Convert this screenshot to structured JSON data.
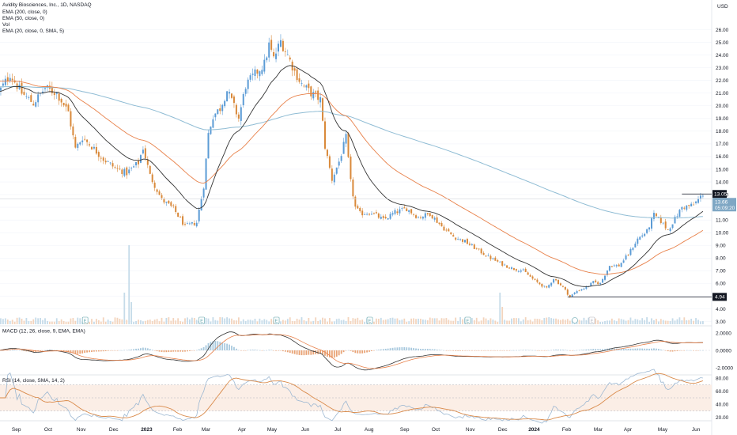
{
  "header": {
    "symbol_line": "Avidity Biosciences, Inc., 1D, NASDAQ",
    "indicators": [
      "EMA (200, close, 0)",
      "EMA (50, close, 0)",
      "Vol",
      "EMA (20, close, 0, SMA, 5)"
    ],
    "currency": "USD"
  },
  "colors": {
    "up": "#5b9bd5",
    "down": "#d9893a",
    "ema20": "#333333",
    "ema50": "#e8814a",
    "ema200": "#8fbcd4",
    "macd": "#333333",
    "signal": "#e8814a",
    "rsi": "#9db8d2",
    "rsi_ma": "#d98a4a",
    "rsi_band": "#fbeee6"
  },
  "chart_data": [
    {
      "type": "candlestick",
      "x_ticks": [
        "Sep",
        "Oct",
        "Nov",
        "Dec",
        "2023",
        "Feb",
        "Mar",
        "Apr",
        "May",
        "Jun",
        "Jul",
        "Aug",
        "Sep",
        "Oct",
        "Nov",
        "Dec",
        "2024",
        "Feb",
        "Mar",
        "Apr",
        "May",
        "Jun"
      ],
      "y_ticks": [
        "26.00",
        "25.00",
        "24.00",
        "23.00",
        "22.00",
        "21.00",
        "20.00",
        "19.00",
        "18.00",
        "17.00",
        "16.00",
        "15.00",
        "14.00",
        "13.00",
        "12.00",
        "11.00",
        "10.00",
        "9.00",
        "8.00",
        "7.00",
        "6.00",
        "5.00",
        "4.00",
        "3.00"
      ],
      "ylim": [
        3,
        26.5
      ],
      "price_path": [
        [
          0,
          21.0
        ],
        [
          5,
          22.5
        ],
        [
          10,
          21.0
        ],
        [
          15,
          20.2
        ],
        [
          20,
          21.4
        ],
        [
          25,
          21.0
        ],
        [
          30,
          19.5
        ],
        [
          33,
          16.6
        ],
        [
          36,
          17.5
        ],
        [
          40,
          16.8
        ],
        [
          45,
          15.8
        ],
        [
          50,
          15.1
        ],
        [
          55,
          14.7
        ],
        [
          60,
          15.5
        ],
        [
          62,
          16.7
        ],
        [
          65,
          14.5
        ],
        [
          70,
          12.6
        ],
        [
          75,
          11.9
        ],
        [
          80,
          10.5
        ],
        [
          85,
          10.8
        ],
        [
          88,
          13.7
        ],
        [
          90,
          17.8
        ],
        [
          92,
          19.2
        ],
        [
          95,
          19.8
        ],
        [
          98,
          21.2
        ],
        [
          100,
          20.4
        ],
        [
          103,
          19.0
        ],
        [
          106,
          21.6
        ],
        [
          110,
          22.5
        ],
        [
          114,
          23.3
        ],
        [
          116,
          24.8
        ],
        [
          118,
          23.7
        ],
        [
          121,
          25.1
        ],
        [
          124,
          24.0
        ],
        [
          127,
          22.7
        ],
        [
          130,
          21.7
        ],
        [
          134,
          21.0
        ],
        [
          138,
          20.5
        ],
        [
          140,
          16.8
        ],
        [
          143,
          14.2
        ],
        [
          146,
          15.6
        ],
        [
          149,
          17.5
        ],
        [
          151,
          14.0
        ],
        [
          153,
          12.0
        ],
        [
          155,
          11.5
        ],
        [
          160,
          11.6
        ],
        [
          165,
          11.0
        ],
        [
          170,
          11.6
        ],
        [
          175,
          11.9
        ],
        [
          180,
          11.2
        ],
        [
          185,
          11.5
        ],
        [
          190,
          10.5
        ],
        [
          195,
          9.7
        ],
        [
          200,
          9.3
        ],
        [
          205,
          8.7
        ],
        [
          210,
          8.1
        ],
        [
          215,
          7.6
        ],
        [
          220,
          7.2
        ],
        [
          225,
          7.0
        ],
        [
          230,
          6.2
        ],
        [
          235,
          5.6
        ],
        [
          238,
          6.4
        ],
        [
          242,
          5.7
        ],
        [
          245,
          4.95
        ],
        [
          248,
          5.4
        ],
        [
          252,
          5.7
        ],
        [
          255,
          6.1
        ],
        [
          258,
          6.0
        ],
        [
          262,
          7.4
        ],
        [
          266,
          7.4
        ],
        [
          270,
          8.3
        ],
        [
          274,
          9.5
        ],
        [
          278,
          10.1
        ],
        [
          281,
          11.4
        ],
        [
          284,
          10.9
        ],
        [
          287,
          10.2
        ],
        [
          290,
          11.1
        ],
        [
          293,
          12.0
        ],
        [
          296,
          12.1
        ],
        [
          298,
          12.2
        ],
        [
          300,
          12.6
        ],
        [
          302,
          13.05
        ]
      ],
      "last_price": "13.05",
      "last_price_detail": [
        "13.66",
        "05:09:20"
      ],
      "low_marker": "4.94",
      "earnings_markers": [
        "E",
        "E",
        "E",
        "E",
        "E",
        "E"
      ]
    },
    {
      "type": "line",
      "title": "MACD (12, 26, close, 9, EMA, EMA)",
      "y_ticks": [
        "2.0000",
        "0.0000",
        "-2.0000"
      ],
      "ylim": [
        -2.7,
        2.2
      ]
    },
    {
      "type": "line",
      "title": "RSI (14, close, SMA, 14, 2)",
      "y_ticks": [
        "80.00",
        "60.00",
        "40.00",
        "20.00"
      ],
      "ylim": [
        15,
        85
      ],
      "band": [
        30,
        70
      ]
    }
  ]
}
